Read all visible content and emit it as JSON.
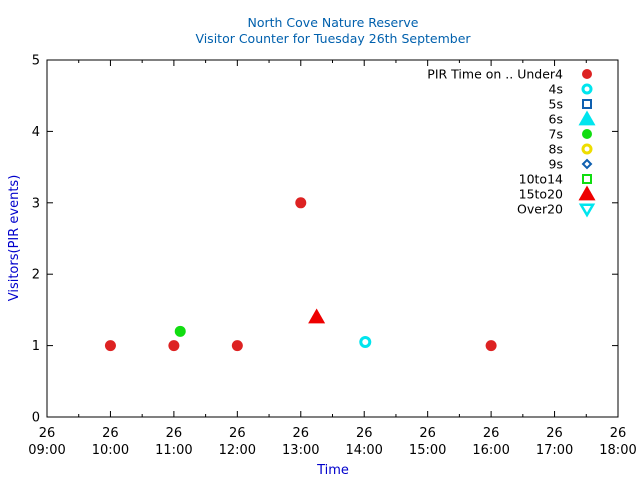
{
  "chart_data": {
    "type": "scatter",
    "title_line1": "North Cove Nature Reserve",
    "title_line2": "Visitor Counter for Tuesday 26th September",
    "xlabel": "Time",
    "ylabel": "Visitors(PIR events)",
    "xlim": [
      "09:00",
      "18:00"
    ],
    "ylim": [
      0,
      5
    ],
    "x_ticks": [
      "09:00",
      "10:00",
      "11:00",
      "12:00",
      "13:00",
      "14:00",
      "15:00",
      "16:00",
      "17:00",
      "18:00"
    ],
    "x_tick_day": "26",
    "y_ticks": [
      0,
      1,
      2,
      3,
      4,
      5
    ],
    "grid": false,
    "legend_position": "top-right",
    "legend_title": "PIR Time on ..",
    "series": [
      {
        "name": "Under4",
        "marker": "circle-filled",
        "color": "#dd2222",
        "points": [
          {
            "x": "10:00",
            "y": 1
          },
          {
            "x": "11:00",
            "y": 1
          },
          {
            "x": "12:00",
            "y": 1
          },
          {
            "x": "13:00",
            "y": 3
          },
          {
            "x": "16:00",
            "y": 1
          }
        ]
      },
      {
        "name": "4s",
        "marker": "circle-open",
        "color": "#00e5ee",
        "points": [
          {
            "x": "14:01",
            "y": 1.05
          }
        ]
      },
      {
        "name": "5s",
        "marker": "square-open",
        "color": "#1060b0",
        "points": []
      },
      {
        "name": "6s",
        "marker": "triangle-filled",
        "color": "#00e5ee",
        "points": []
      },
      {
        "name": "7s",
        "marker": "circle-filled",
        "color": "#11dd11",
        "points": [
          {
            "x": "11:06",
            "y": 1.2
          }
        ]
      },
      {
        "name": "8s",
        "marker": "circle-open",
        "color": "#eedd00",
        "points": []
      },
      {
        "name": "9s",
        "marker": "diamond-open",
        "color": "#1060b0",
        "points": []
      },
      {
        "name": "10to14",
        "marker": "square-open",
        "color": "#11dd11",
        "points": []
      },
      {
        "name": "15to20",
        "marker": "triangle-filled",
        "color": "#ee0000",
        "points": [
          {
            "x": "13:15",
            "y": 1.4
          }
        ]
      },
      {
        "name": "Over20",
        "marker": "triangle-down-open",
        "color": "#00e5ee",
        "points": []
      }
    ],
    "colors": {
      "title": "#0060ad",
      "axis_label": "#0000cc",
      "axis": "#000000"
    }
  }
}
